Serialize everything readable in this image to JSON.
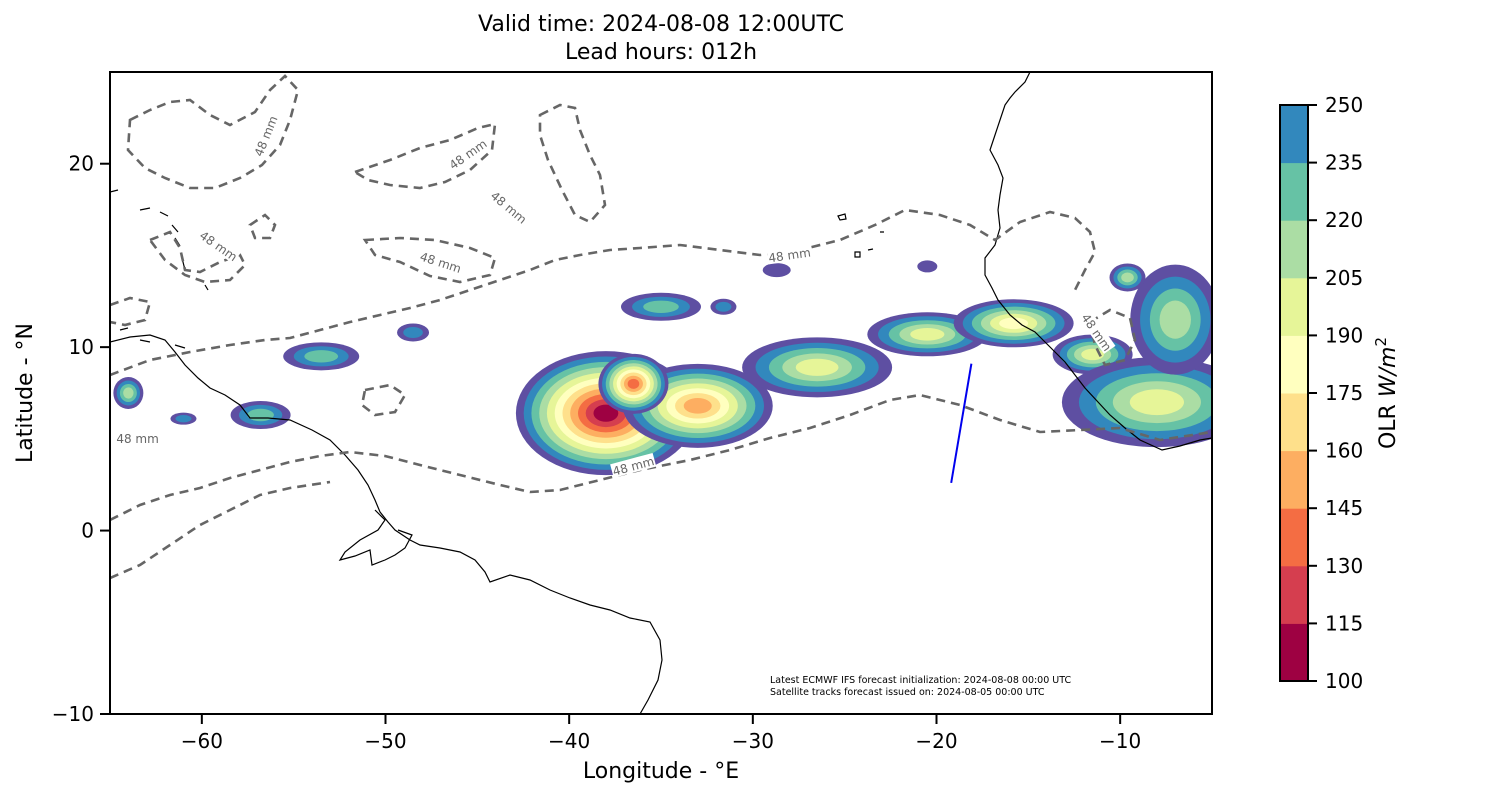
{
  "figure": {
    "title_line1": "Valid time: 2024-08-08 12:00UTC",
    "title_line2": "Lead hours: 012h",
    "xlabel": "Longitude - °E",
    "ylabel": "Latitude - °N",
    "footnote_line1": "Latest ECMWF IFS forecast initialization: 2024-08-08 00:00 UTC",
    "footnote_line2": "Satellite tracks forecast issued on: 2024-08-05 00:00 UTC",
    "contour_label": "48 mm",
    "colorbar_label": "OLR W/m²"
  },
  "chart_data": {
    "type": "heatmap",
    "description_of_axes": "map",
    "xlim": [
      -65,
      -5
    ],
    "ylim": [
      -10,
      25
    ],
    "xticks": [
      -60,
      -50,
      -40,
      -30,
      -20,
      -10
    ],
    "xtick_labels": [
      "−60",
      "−50",
      "−40",
      "−30",
      "−20",
      "−10"
    ],
    "yticks": [
      -10,
      0,
      10,
      20
    ],
    "ytick_labels": [
      "−10",
      "0",
      "10",
      "20"
    ],
    "colorbar": {
      "levels": [
        100,
        115,
        130,
        145,
        160,
        175,
        190,
        205,
        220,
        235,
        250
      ],
      "level_labels": [
        "100",
        "115",
        "130",
        "145",
        "160",
        "175",
        "190",
        "205",
        "220",
        "235",
        "250"
      ],
      "colors": [
        "#9e0142",
        "#d53e4f",
        "#f46d43",
        "#fdae61",
        "#fee08b",
        "#ffffbf",
        "#e6f598",
        "#abdda4",
        "#66c2a5",
        "#3288bd",
        "#5e4fa2",
        "#ffffff"
      ],
      "label": "OLR W/m²"
    },
    "contour_level": "48 mm",
    "contour_label_positions": [
      {
        "lon": -56.5,
        "lat": 21.5
      },
      {
        "lon": -45.5,
        "lat": 20.5
      },
      {
        "lon": -43.3,
        "lat": 17.6
      },
      {
        "lon": -59.1,
        "lat": 15.5
      },
      {
        "lon": -47.0,
        "lat": 14.6
      },
      {
        "lon": -28.0,
        "lat": 15.0
      },
      {
        "lon": -63.5,
        "lat": 5.0
      },
      {
        "lon": -36.5,
        "lat": 3.5
      },
      {
        "lon": -11.3,
        "lat": 10.8
      }
    ],
    "track": {
      "start": {
        "lon": -18.1,
        "lat": 9.1
      },
      "end": {
        "lon": -19.2,
        "lat": 2.6
      },
      "color": "#0000ee"
    }
  }
}
